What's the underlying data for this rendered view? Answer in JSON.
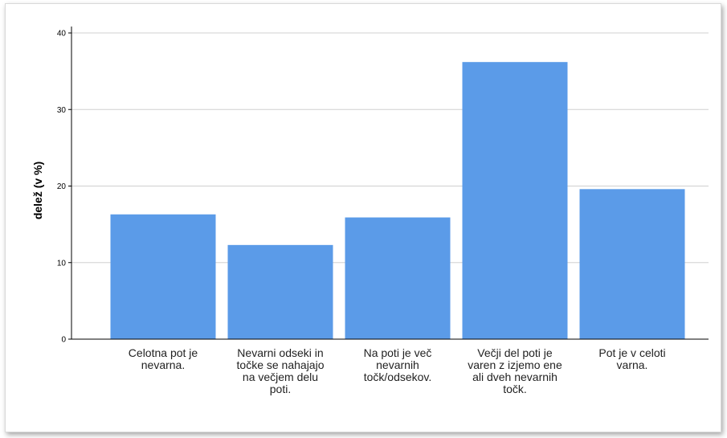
{
  "chart_data": {
    "type": "bar",
    "title": "",
    "xlabel": "",
    "ylabel": "delež (v %)",
    "ylim": [
      0,
      40
    ],
    "yticks": [
      0,
      10,
      20,
      30,
      40
    ],
    "grid": true,
    "bar_color": "#5b9be8",
    "grid_color": "#d0d0d0",
    "categories": [
      [
        "Celotna pot je",
        "nevarna."
      ],
      [
        "Nevarni odseki in",
        "točke se nahajajo",
        "na večjem delu",
        "poti."
      ],
      [
        "Na poti je več",
        "nevarnih",
        "točk/odsekov."
      ],
      [
        "Večji del poti je",
        "varen z izjemo ene",
        "ali dveh nevarnih",
        "točk."
      ],
      [
        "Pot je v celoti",
        "varna."
      ]
    ],
    "values": [
      16.3,
      12.3,
      15.9,
      36.2,
      19.6
    ]
  }
}
